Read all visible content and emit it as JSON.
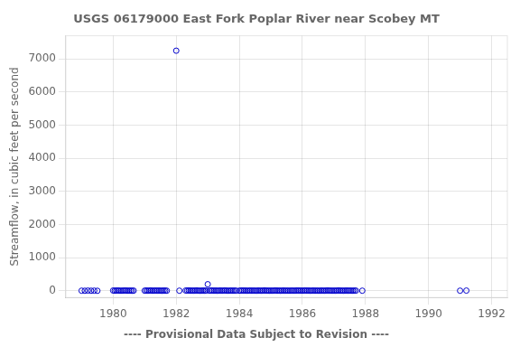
{
  "chart_data": {
    "type": "scatter",
    "title": "USGS 06179000 East Fork Poplar River near Scobey MT",
    "y_label": "Streamflow, in cubic feet per second",
    "annotation": "---- Provisional Data Subject to Revision ----",
    "color": "#0000cc",
    "marker": "circle",
    "grid": true,
    "xlim": [
      1978.5,
      1992.5
    ],
    "ylim": [
      -200,
      7700
    ],
    "xticks": [
      1980,
      1982,
      1984,
      1986,
      1988,
      1990,
      1992
    ],
    "yticks": [
      0,
      1000,
      2000,
      3000,
      4000,
      5000,
      6000,
      7000
    ],
    "x": [
      1979.0,
      1979.1,
      1979.2,
      1979.3,
      1979.4,
      1979.5,
      1980.0,
      1980.05,
      1980.1,
      1980.15,
      1980.2,
      1980.25,
      1980.3,
      1980.35,
      1980.4,
      1980.45,
      1980.5,
      1980.55,
      1980.6,
      1980.65,
      1981.0,
      1981.05,
      1981.1,
      1981.15,
      1981.2,
      1981.25,
      1981.3,
      1981.35,
      1981.4,
      1981.45,
      1981.5,
      1981.55,
      1981.6,
      1981.65,
      1981.7,
      1982.0,
      1982.1,
      1982.3,
      1982.35,
      1982.4,
      1982.45,
      1982.5,
      1982.55,
      1982.6,
      1982.65,
      1982.7,
      1982.75,
      1982.8,
      1982.85,
      1982.9,
      1982.95,
      1983.0,
      1983.05,
      1983.1,
      1983.15,
      1983.2,
      1983.25,
      1983.3,
      1983.35,
      1983.4,
      1983.45,
      1983.5,
      1983.55,
      1983.6,
      1983.65,
      1983.7,
      1983.75,
      1983.8,
      1983.85,
      1983.9,
      1984.0,
      1984.05,
      1984.1,
      1984.15,
      1984.2,
      1984.25,
      1984.3,
      1984.35,
      1984.4,
      1984.45,
      1984.5,
      1984.55,
      1984.6,
      1984.65,
      1984.7,
      1984.75,
      1984.8,
      1984.85,
      1984.9,
      1984.95,
      1985.0,
      1985.05,
      1985.1,
      1985.15,
      1985.2,
      1985.25,
      1985.3,
      1985.35,
      1985.4,
      1985.45,
      1985.5,
      1985.55,
      1985.6,
      1985.65,
      1985.7,
      1985.75,
      1985.8,
      1985.85,
      1985.9,
      1985.95,
      1986.0,
      1986.05,
      1986.1,
      1986.15,
      1986.2,
      1986.25,
      1986.3,
      1986.35,
      1986.4,
      1986.45,
      1986.5,
      1986.55,
      1986.6,
      1986.65,
      1986.7,
      1986.75,
      1986.8,
      1986.85,
      1986.9,
      1986.95,
      1987.0,
      1987.05,
      1987.1,
      1987.15,
      1987.2,
      1987.25,
      1987.3,
      1987.35,
      1987.4,
      1987.45,
      1987.5,
      1987.55,
      1987.6,
      1987.65,
      1987.7,
      1987.9,
      1991.0,
      1991.2
    ],
    "values": [
      5,
      3,
      8,
      4,
      6,
      2,
      10,
      5,
      8,
      12,
      6,
      4,
      7,
      9,
      11,
      5,
      6,
      8,
      4,
      7,
      6,
      9,
      5,
      8,
      12,
      4,
      7,
      10,
      5,
      8,
      6,
      4,
      9,
      7,
      5,
      7250,
      5,
      10,
      8,
      12,
      6,
      9,
      5,
      8,
      11,
      7,
      4,
      6,
      9,
      5,
      8,
      200,
      5,
      12,
      8,
      6,
      9,
      4,
      7,
      10,
      5,
      8,
      12,
      6,
      4,
      7,
      9,
      5,
      8,
      6,
      5,
      8,
      12,
      6,
      9,
      4,
      7,
      10,
      5,
      8,
      6,
      4,
      9,
      7,
      5,
      8,
      12,
      6,
      9,
      4,
      7,
      5,
      8,
      12,
      6,
      9,
      4,
      7,
      10,
      5,
      8,
      6,
      4,
      9,
      7,
      5,
      8,
      12,
      6,
      9,
      5,
      8,
      12,
      6,
      9,
      4,
      7,
      10,
      5,
      8,
      6,
      4,
      9,
      7,
      5,
      8,
      12,
      6,
      9,
      4,
      7,
      5,
      8,
      12,
      6,
      9,
      4,
      7,
      10,
      5,
      8,
      6,
      4,
      9,
      7,
      5,
      5,
      8
    ]
  }
}
